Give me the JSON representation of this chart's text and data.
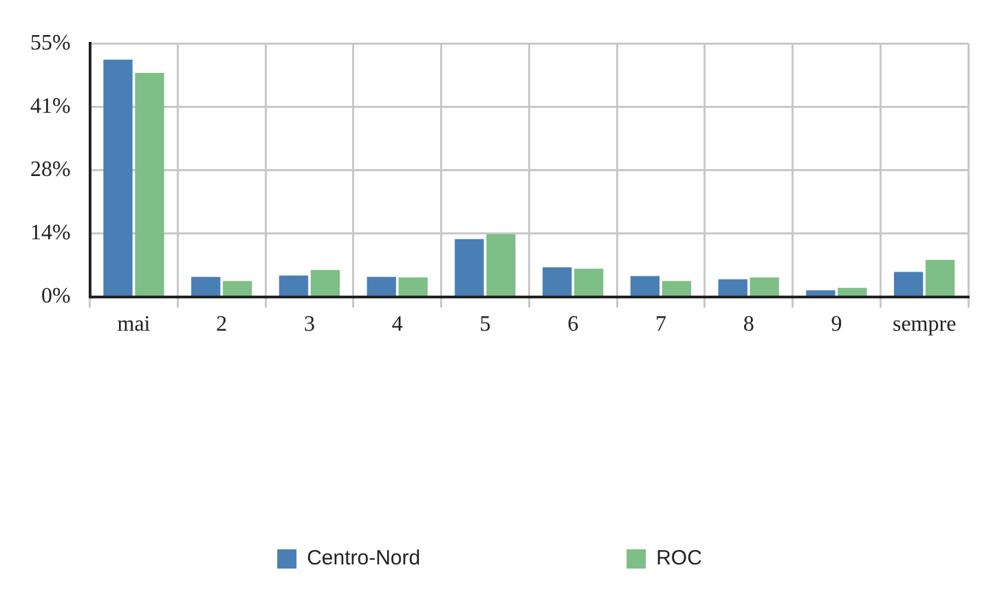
{
  "chart_data": {
    "type": "bar",
    "categories": [
      "mai",
      "2",
      "3",
      "4",
      "5",
      "6",
      "7",
      "8",
      "9",
      "sempre"
    ],
    "series": [
      {
        "name": "Centro-Nord",
        "color": "#4a7fb5",
        "values": [
          51.5,
          4.3,
          4.6,
          4.3,
          12.5,
          6.4,
          4.5,
          3.8,
          1.4,
          5.4
        ]
      },
      {
        "name": "ROC",
        "color": "#7dbf87",
        "values": [
          48.6,
          3.4,
          5.8,
          4.2,
          13.6,
          6.1,
          3.4,
          4.2,
          1.9,
          8.0
        ]
      }
    ],
    "ylim": [
      0,
      55
    ],
    "yticks": [
      {
        "value": 0,
        "label": "0%"
      },
      {
        "value": 13.75,
        "label": "14%"
      },
      {
        "value": 27.5,
        "label": "28%"
      },
      {
        "value": 41.25,
        "label": "41%"
      },
      {
        "value": 55,
        "label": "55%"
      }
    ],
    "grid": true,
    "legend": "bottom"
  }
}
